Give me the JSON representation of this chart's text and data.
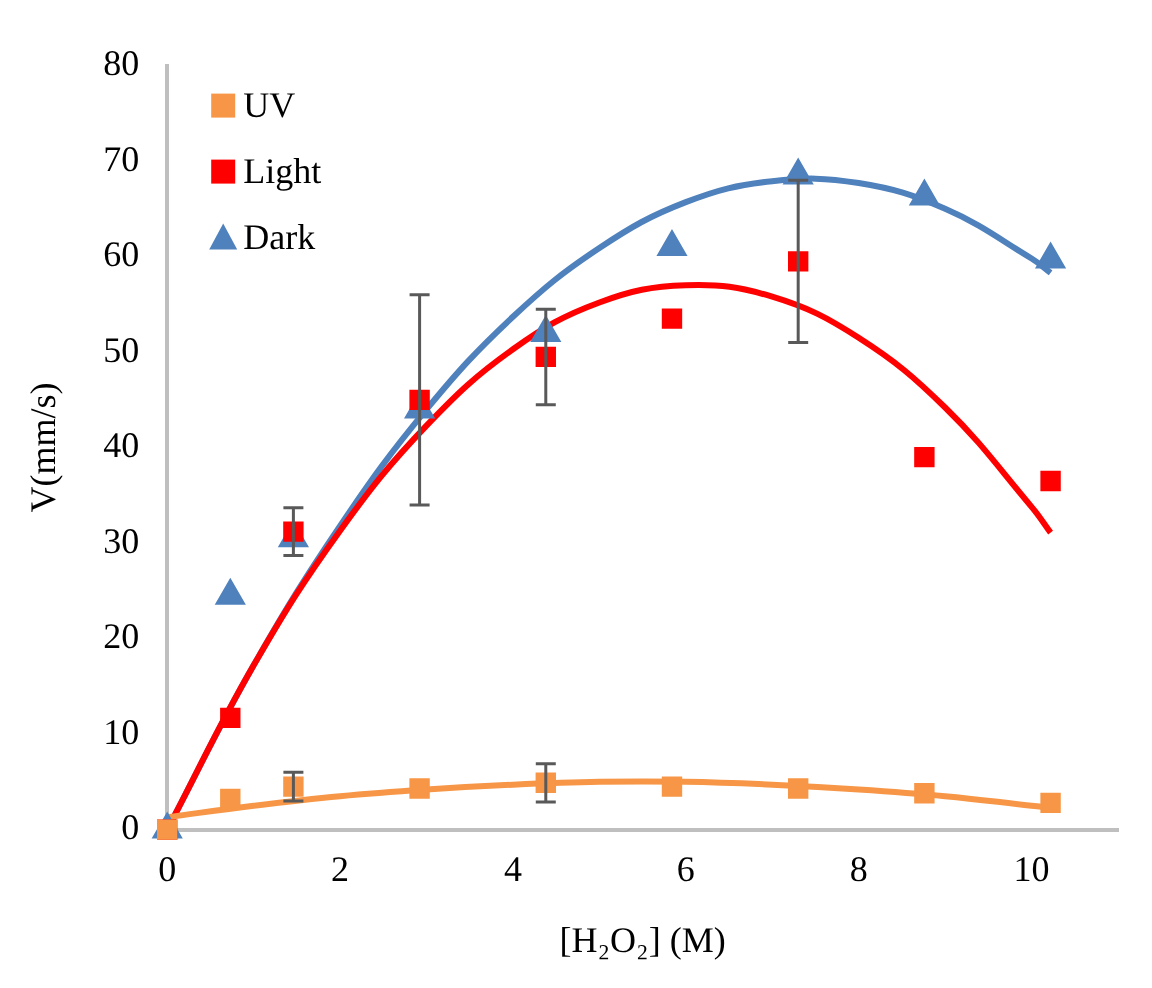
{
  "chart_data": {
    "type": "scatter",
    "xlabel": "[H₂O₂] (M)",
    "ylabel": "V(mm/s)",
    "xlim": [
      0,
      11
    ],
    "xticks": [
      0,
      2,
      4,
      6,
      8,
      10
    ],
    "ylim": [
      0,
      80
    ],
    "yticks": [
      0,
      10,
      20,
      30,
      40,
      50,
      60,
      70,
      80
    ],
    "grid": false,
    "legend": "top left",
    "series": [
      {
        "name": "UV",
        "marker": "square",
        "color": "#f79646",
        "x": [
          0,
          0.73,
          1.46,
          2.92,
          4.38,
          5.84,
          7.3,
          8.76,
          10.22
        ],
        "values": [
          0,
          3.2,
          4.5,
          4.3,
          4.9,
          4.5,
          4.3,
          3.8,
          2.8
        ],
        "errors": [
          null,
          null,
          1.5,
          null,
          2,
          null,
          null,
          null,
          null
        ]
      },
      {
        "name": "Light",
        "marker": "square",
        "color": "#ff0000",
        "x": [
          0,
          0.73,
          1.46,
          2.92,
          4.38,
          5.84,
          7.3,
          8.76,
          10.22
        ],
        "values": [
          0,
          11.7,
          31.2,
          45,
          49.5,
          53.5,
          59.5,
          39,
          36.5
        ],
        "errors": [
          null,
          null,
          2.5,
          11,
          5,
          null,
          8.5,
          null,
          null
        ]
      },
      {
        "name": "Dark",
        "marker": "triangle",
        "color": "#4f81bd",
        "x": [
          0,
          0.73,
          1.46,
          2.92,
          4.38,
          5.84,
          7.3,
          8.76,
          10.22
        ],
        "values": [
          0,
          24.5,
          30.5,
          44,
          52,
          61,
          68.5,
          66.3,
          59.7
        ]
      },
      {
        "type": "line",
        "marker": "none",
        "color": "#f79646",
        "x": [
          0,
          1,
          2,
          3,
          4,
          5,
          6,
          7,
          8,
          9,
          10,
          10.22
        ],
        "values": [
          1.3,
          2.5,
          3.5,
          4.2,
          4.7,
          5.0,
          5.0,
          4.7,
          4.2,
          3.5,
          2.5,
          2.3
        ]
      },
      {
        "type": "line",
        "marker": "none",
        "color": "#ff0000",
        "x": [
          0,
          1,
          2,
          3,
          4,
          5,
          6,
          7,
          8,
          9,
          10,
          10.22
        ],
        "values": [
          0,
          17.2,
          31.3,
          42.3,
          50.3,
          55.2,
          57.0,
          55.8,
          51.5,
          44.2,
          33.8,
          31.1
        ]
      },
      {
        "type": "line",
        "marker": "none",
        "color": "#4f81bd",
        "x": [
          0,
          1,
          2,
          3,
          4,
          5,
          6,
          7,
          8,
          9,
          10,
          10.22
        ],
        "values": [
          0,
          17.2,
          31.8,
          44.0,
          53.7,
          60.9,
          65.7,
          67.9,
          67.7,
          65.0,
          59.8,
          58.3
        ]
      }
    ]
  }
}
